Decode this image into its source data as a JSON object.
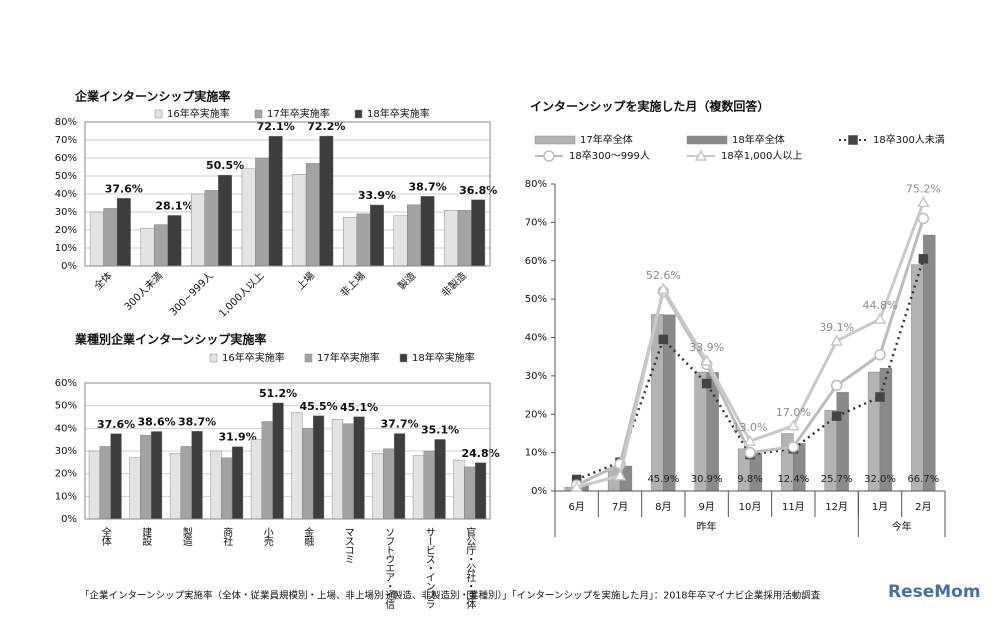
{
  "chart_data": [
    {
      "type": "bar",
      "title": "企業インターンシップ実施率",
      "categories": [
        "全体",
        "300人未満",
        "300~999人",
        "1,000人以上",
        "上場",
        "非上場",
        "製造",
        "非製造"
      ],
      "series": [
        {
          "name": "16年卒実施率",
          "color": "#e3e3e3",
          "values": [
            30,
            21,
            40,
            54,
            51,
            27,
            28,
            31
          ]
        },
        {
          "name": "17年卒実施率",
          "color": "#a3a3a3",
          "values": [
            32,
            23,
            42,
            60,
            57,
            29,
            34,
            31
          ]
        },
        {
          "name": "18年卒実施率",
          "color": "#3d3d3d",
          "values": [
            37.6,
            28.1,
            50.5,
            72.1,
            72.2,
            33.9,
            38.7,
            36.8
          ],
          "value_labels": [
            "37.6%",
            "28.1%",
            "50.5%",
            "72.1%",
            "72.2%",
            "33.9%",
            "38.7%",
            "36.8%"
          ]
        }
      ],
      "ylim": [
        0,
        80
      ],
      "yticks": [
        {
          "value": 0,
          "label": "0%"
        },
        {
          "value": 10,
          "label": "10%"
        },
        {
          "value": 20,
          "label": "20%"
        },
        {
          "value": 30,
          "label": "30%"
        },
        {
          "value": 40,
          "label": "40%"
        },
        {
          "value": 50,
          "label": "50%"
        },
        {
          "value": 60,
          "label": "60%"
        },
        {
          "value": 70,
          "label": "70%"
        },
        {
          "value": 80,
          "label": "80%"
        }
      ],
      "grid": true,
      "label_style": "rotated"
    },
    {
      "type": "bar",
      "title": "業種別企業インターンシップ実施率",
      "categories": [
        "全体",
        "建設",
        "製造",
        "商社",
        "小売",
        "金融",
        "マスコミ",
        "ソフトウエア・通信",
        "サービス・インフラ",
        "官公庁・公社・団体"
      ],
      "series": [
        {
          "name": "16年卒実施率",
          "color": "#e3e3e3",
          "values": [
            30,
            27,
            29,
            30,
            35,
            47,
            44,
            29,
            28,
            26
          ]
        },
        {
          "name": "17年卒実施率",
          "color": "#a3a3a3",
          "values": [
            32,
            37,
            32,
            27,
            43,
            40,
            42,
            31,
            30,
            23
          ]
        },
        {
          "name": "18年卒実施率",
          "color": "#3d3d3d",
          "values": [
            37.6,
            38.6,
            38.7,
            31.9,
            51.2,
            45.5,
            45.1,
            37.7,
            35.1,
            24.8
          ],
          "value_labels": [
            "37.6%",
            "38.6%",
            "38.7%",
            "31.9%",
            "51.2%",
            "45.5%",
            "45.1%",
            "37.7%",
            "35.1%",
            "24.8%"
          ]
        }
      ],
      "ylim": [
        0,
        60
      ],
      "yticks": [
        {
          "value": 0,
          "label": "0%"
        },
        {
          "value": 10,
          "label": "10%"
        },
        {
          "value": 20,
          "label": "20%"
        },
        {
          "value": 30,
          "label": "30%"
        },
        {
          "value": 40,
          "label": "40%"
        },
        {
          "value": 50,
          "label": "50%"
        },
        {
          "value": 60,
          "label": "60%"
        }
      ],
      "grid": true,
      "label_style": "vertical"
    },
    {
      "type": "combo",
      "title": "インターンシップを実施した月（複数回答）",
      "categories": [
        "6月",
        "7月",
        "8月",
        "9月",
        "10月",
        "11月",
        "12月",
        "1月",
        "2月"
      ],
      "groups": [
        {
          "label": "昨年",
          "count": 7
        },
        {
          "label": "今年",
          "count": 2
        }
      ],
      "series": [
        {
          "name": "17年卒全体",
          "type": "bar",
          "color": "#b3b3b3",
          "values": [
            1,
            6,
            46,
            31,
            11,
            15,
            21,
            31,
            59
          ]
        },
        {
          "name": "18年卒全体",
          "type": "bar",
          "color": "#8a8a8a",
          "values": [
            1.5,
            6.5,
            45.9,
            30.9,
            9.8,
            12.4,
            25.7,
            32.0,
            66.7
          ],
          "value_labels": [
            null,
            null,
            "45.9%",
            "30.9%",
            "9.8%",
            "12.4%",
            "25.7%",
            "32.0%",
            "66.7%"
          ]
        },
        {
          "name": "18卒300人未満",
          "type": "line",
          "color": "#333333",
          "dashed": true,
          "marker": "square",
          "values": [
            3,
            7.5,
            39.5,
            28,
            9.5,
            11,
            19.5,
            24.5,
            60.5
          ]
        },
        {
          "name": "18卒300～999人",
          "type": "line",
          "color": "#bdbdbd",
          "dashed": false,
          "marker": "circle",
          "values": [
            1.5,
            7,
            52,
            33,
            10,
            11.5,
            27.5,
            35.5,
            71
          ]
        },
        {
          "name": "18卒1,000人以上",
          "type": "line",
          "color": "#c9c9c9",
          "dashed": false,
          "marker": "triangle",
          "values": [
            1,
            4,
            52.6,
            33.9,
            13.0,
            17.0,
            39.1,
            44.8,
            75.2
          ],
          "value_labels": [
            null,
            null,
            "52.6%",
            "33.9%",
            "13.0%",
            "17.0%",
            "39.1%",
            "44.8%",
            "75.2%"
          ]
        }
      ],
      "ylim": [
        0,
        80
      ],
      "yticks": [
        {
          "value": 0,
          "label": "0%"
        },
        {
          "value": 10,
          "label": "10%"
        },
        {
          "value": 20,
          "label": "20%"
        },
        {
          "value": 30,
          "label": "30%"
        },
        {
          "value": 40,
          "label": "40%"
        },
        {
          "value": 50,
          "label": "50%"
        },
        {
          "value": 60,
          "label": "60%"
        },
        {
          "value": 70,
          "label": "70%"
        },
        {
          "value": 80,
          "label": "80%"
        }
      ],
      "grid": false
    }
  ],
  "caption": "「企業インターンシップ実施率（全体・従業員規模別・上場、非上場別・製造、非製造別・業種別）」「インターンシップを実施した月」：2018年卒マイナビ企業採用活動調査",
  "logo": "ReseMom"
}
